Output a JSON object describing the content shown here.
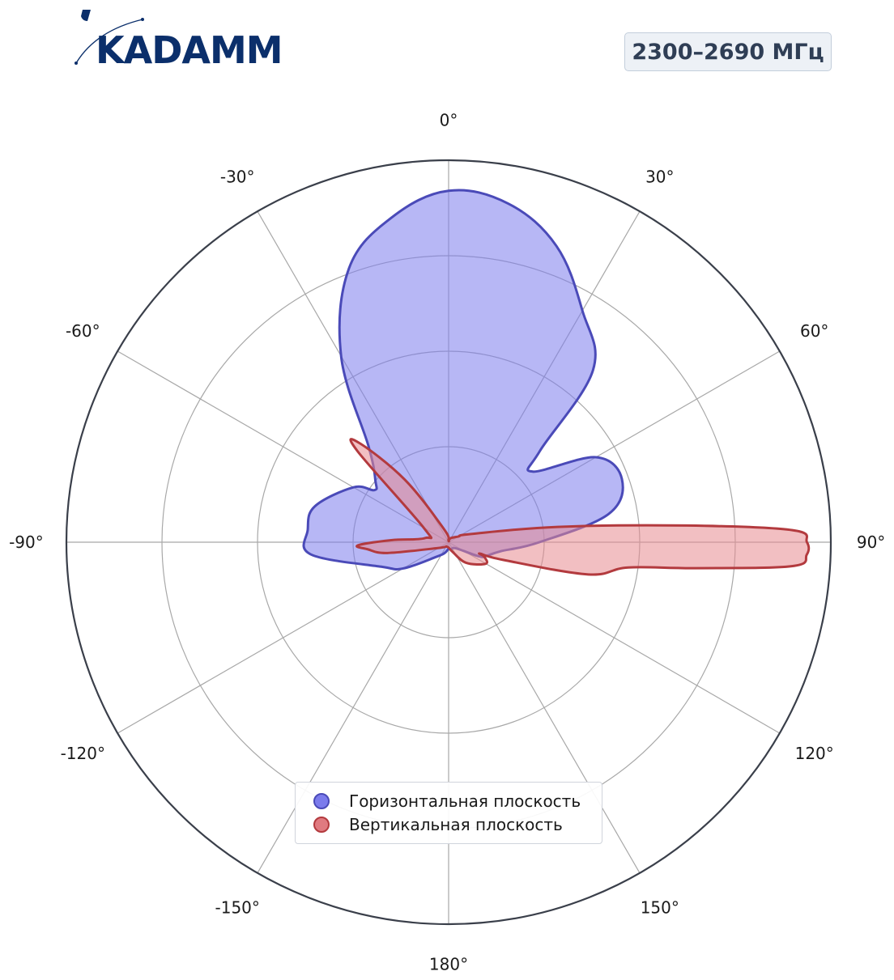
{
  "brand": {
    "name": "KADAMM",
    "color": "#0b2f6b"
  },
  "badge": {
    "frequency": "2300–2690 МГц"
  },
  "chart_data": {
    "type": "polar",
    "angle_unit": "degrees",
    "angle_zero": "top",
    "angle_direction": "clockwise",
    "angle_ticks": [
      0,
      30,
      60,
      90,
      120,
      150,
      180,
      -150,
      -120,
      -90,
      -60,
      -30
    ],
    "angle_tick_labels": [
      "0°",
      "30°",
      "60°",
      "90°",
      "120°",
      "150°",
      "180°",
      "-150°",
      "-120°",
      "-90°",
      "-60°",
      "-30°"
    ],
    "radial_rings": [
      1,
      2,
      3,
      4
    ],
    "radial_max": 4,
    "radial_tick_labels_visible": false,
    "grid": true,
    "legend_position": "bottom-center",
    "series": [
      {
        "name": "Горизонтальная плоскость",
        "color": "#4a4ab8",
        "fill": "#7b7bec",
        "points": [
          [
            0,
            3.68
          ],
          [
            10,
            3.6
          ],
          [
            20,
            3.3
          ],
          [
            30,
            2.8
          ],
          [
            40,
            2.35
          ],
          [
            45,
            1.35
          ],
          [
            50,
            1.15
          ],
          [
            60,
            1.78
          ],
          [
            70,
            1.93
          ],
          [
            80,
            1.7
          ],
          [
            90,
            0.95
          ],
          [
            100,
            0.55
          ],
          [
            110,
            0.42
          ],
          [
            115,
            0.35
          ],
          [
            130,
            0.1
          ],
          [
            160,
            0.08
          ],
          [
            180,
            0.07
          ],
          [
            200,
            0.12
          ],
          [
            220,
            0.2
          ],
          [
            240,
            0.55
          ],
          [
            250,
            0.75
          ],
          [
            265,
            1.45
          ],
          [
            275,
            1.48
          ],
          [
            285,
            1.45
          ],
          [
            300,
            1.15
          ],
          [
            305,
            0.95
          ],
          [
            310,
            1.0
          ],
          [
            320,
            1.3
          ],
          [
            330,
            2.25
          ],
          [
            340,
            3.05
          ],
          [
            350,
            3.45
          ]
        ]
      },
      {
        "name": "Вертикальная плоскость",
        "color": "#b33a3e",
        "fill": "#e88a8f",
        "points": [
          [
            0,
            0.02
          ],
          [
            30,
            0.05
          ],
          [
            60,
            0.12
          ],
          [
            70,
            0.25
          ],
          [
            82,
            1.15
          ],
          [
            86,
            2.5
          ],
          [
            88,
            3.6
          ],
          [
            90,
            3.75
          ],
          [
            92,
            3.75
          ],
          [
            94,
            3.6
          ],
          [
            96,
            2.6
          ],
          [
            98,
            1.9
          ],
          [
            103,
            1.5
          ],
          [
            108,
            0.6
          ],
          [
            110,
            0.35
          ],
          [
            112,
            0.4
          ],
          [
            120,
            0.45
          ],
          [
            140,
            0.28
          ],
          [
            160,
            0.1
          ],
          [
            200,
            0.05
          ],
          [
            240,
            0.12
          ],
          [
            260,
            0.65
          ],
          [
            265,
            0.85
          ],
          [
            268,
            0.95
          ],
          [
            272,
            0.6
          ],
          [
            280,
            0.25
          ],
          [
            300,
            0.3
          ],
          [
            315,
            1.35
          ],
          [
            318,
            1.4
          ],
          [
            325,
            0.8
          ],
          [
            340,
            0.15
          ],
          [
            360,
            0.02
          ]
        ]
      }
    ]
  }
}
